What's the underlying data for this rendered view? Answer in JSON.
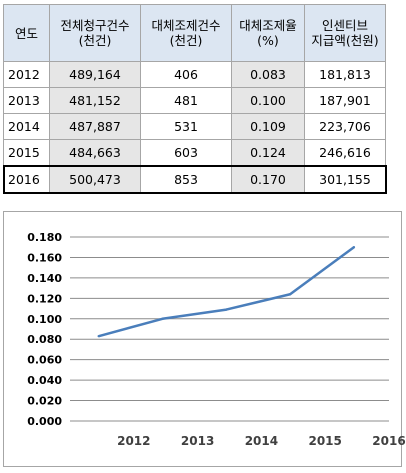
{
  "table": {
    "headers": [
      "연도",
      "전체청구건수\n(천건)",
      "대체조제건수\n(천건)",
      "대체조제율\n(%)",
      "인센티브\n지급액(천원)"
    ],
    "rows": [
      [
        "2012",
        "489,164",
        "406",
        "0.083",
        "181,813"
      ],
      [
        "2013",
        "481,152",
        "481",
        "0.100",
        "187,901"
      ],
      [
        "2014",
        "487,887",
        "531",
        "0.109",
        "223,706"
      ],
      [
        "2015",
        "484,663",
        "603",
        "0.124",
        "246,616"
      ],
      [
        "2016",
        "500,473",
        "853",
        "0.170",
        "301,155"
      ]
    ],
    "highlighted_row": "2016"
  },
  "colors": {
    "header_bg": "#dce6f2",
    "shaded_col_bg": "#e6e6e6",
    "line": "#4a7ebb",
    "grid": "#8c8c8c"
  },
  "chart_data": {
    "type": "line",
    "categories": [
      "2012",
      "2013",
      "2014",
      "2015",
      "2016"
    ],
    "series": [
      {
        "values": [
          0.083,
          0.1,
          0.109,
          0.124,
          0.17
        ]
      }
    ],
    "yticks": [
      "0.180",
      "0.160",
      "0.140",
      "0.120",
      "0.100",
      "0.080",
      "0.060",
      "0.040",
      "0.020",
      "0.000"
    ],
    "ylim": [
      0,
      0.18
    ],
    "grid": true,
    "legend": "none",
    "title": "",
    "xlabel": "",
    "ylabel": ""
  }
}
